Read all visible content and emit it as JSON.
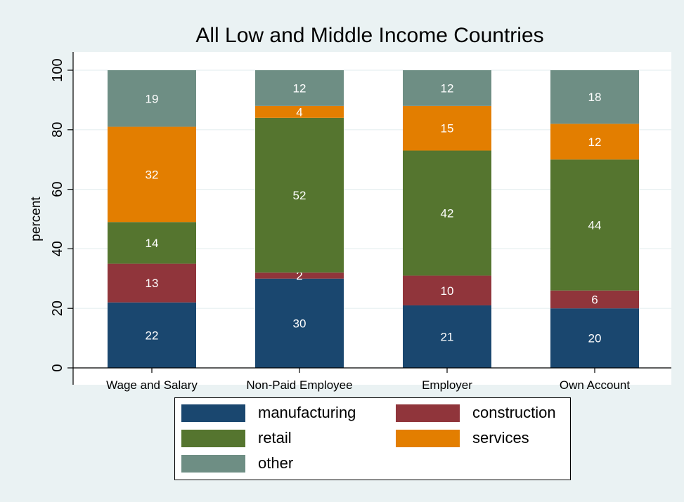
{
  "chart_data": {
    "type": "bar",
    "stacked": true,
    "title": "All Low and Middle Income Countries",
    "ylabel": "percent",
    "xlabel": "",
    "ylim": [
      0,
      100
    ],
    "yticks": [
      0,
      20,
      40,
      60,
      80,
      100
    ],
    "grid": true,
    "legend_position": "bottom",
    "categories": [
      "Wage and Salary",
      "Non-Paid Employee",
      "Employer",
      "Own Account"
    ],
    "series": [
      {
        "name": "manufacturing",
        "color": "#1a476f",
        "values": [
          22,
          30,
          21,
          20
        ]
      },
      {
        "name": "construction",
        "color": "#90353b",
        "values": [
          13,
          2,
          10,
          6
        ]
      },
      {
        "name": "retail",
        "color": "#55752f",
        "values": [
          14,
          52,
          42,
          44
        ]
      },
      {
        "name": "services",
        "color": "#e37e00",
        "values": [
          32,
          4,
          15,
          12
        ]
      },
      {
        "name": "other",
        "color": "#6e8e84",
        "values": [
          19,
          12,
          12,
          18
        ]
      }
    ],
    "data_label_color": "#ffffff",
    "plot_background": "#ffffff",
    "figure_background": "#eaf2f3",
    "title_color": "#1e3a5f"
  }
}
